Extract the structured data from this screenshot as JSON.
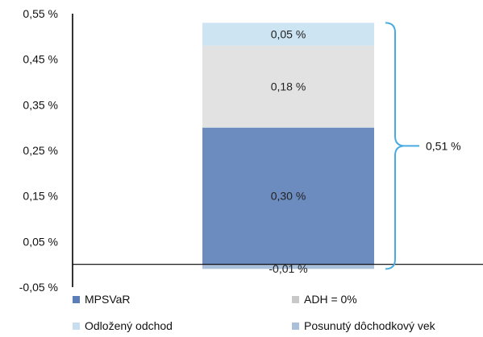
{
  "chart_data": {
    "type": "bar",
    "stacked": true,
    "ylim": [
      -0.05,
      0.55
    ],
    "yticks": [
      -0.05,
      0.05,
      0.15,
      0.25,
      0.35,
      0.45,
      0.55
    ],
    "ytick_labels": [
      "-0,05 %",
      "0,05 %",
      "0,15 %",
      "0,25 %",
      "0,35 %",
      "0,45 %",
      "0,55 %"
    ],
    "categories": [
      ""
    ],
    "series": [
      {
        "name": "MPSVaR",
        "values": [
          0.3
        ],
        "label": "0,30 %",
        "color": "#6c8cc0"
      },
      {
        "name": "Posunutý dôchodkový vek",
        "values": [
          -0.01
        ],
        "label": "-0,01 %",
        "color": "#a9bfda"
      },
      {
        "name": "ADH = 0%",
        "values": [
          0.18
        ],
        "label": "0,18 %",
        "color": "#e2e2e2"
      },
      {
        "name": "Odložený odchod",
        "values": [
          0.05
        ],
        "label": "0,05 %",
        "color": "#cde4f3"
      }
    ],
    "total": {
      "value": 0.51,
      "label": "0,51 %",
      "color": "#4aabe0"
    },
    "legend": [
      {
        "name": "MPSVaR",
        "color": "#5b7db8"
      },
      {
        "name": "ADH = 0%",
        "color": "#c8c8c8"
      },
      {
        "name": "Odložený odchod",
        "color": "#c7def0"
      },
      {
        "name": "Posunutý dôchodkový vek",
        "color": "#a9bfda"
      }
    ],
    "legend_position": "bottom",
    "grid": false
  }
}
